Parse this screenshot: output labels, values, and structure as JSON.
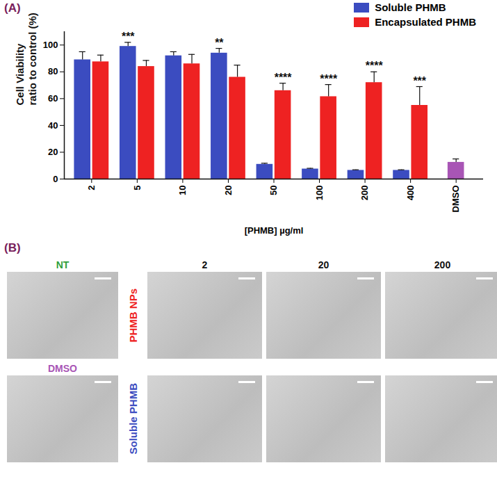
{
  "chart_data": {
    "type": "bar",
    "title": "(A)",
    "y_label": "Cell Viability\nratio to control (%)",
    "x_label": "[PHMB] µg/ml",
    "categories": [
      "2",
      "5",
      "10",
      "20",
      "50",
      "100",
      "200",
      "400",
      "DMSO"
    ],
    "series": [
      {
        "name": "Soluble PHMB",
        "color": "#3b4cc0",
        "values": [
          89,
          99,
          92,
          94,
          11,
          7.5,
          6.5,
          6.5,
          null
        ],
        "errors": [
          6,
          3,
          3,
          3.5,
          0.8,
          0.5,
          0.4,
          0.4,
          null
        ]
      },
      {
        "name": "Encapsulated PHMB",
        "color": "#ee2222",
        "values": [
          87.5,
          84,
          86,
          76,
          66,
          61.5,
          72,
          55,
          null
        ],
        "errors": [
          5,
          4.5,
          7,
          9,
          5.5,
          9,
          8,
          14,
          null
        ]
      }
    ],
    "control": {
      "category": "DMSO",
      "value": 12.5,
      "error": 2.5,
      "color": "#a855b5"
    },
    "annotations": [
      {
        "category": "5",
        "series": "Soluble PHMB",
        "text": "***"
      },
      {
        "category": "20",
        "series": "Soluble PHMB",
        "text": "**"
      },
      {
        "category": "50",
        "series": "Encapsulated PHMB",
        "text": "****"
      },
      {
        "category": "100",
        "series": "Encapsulated PHMB",
        "text": "****"
      },
      {
        "category": "200",
        "series": "Encapsulated PHMB",
        "text": "****"
      },
      {
        "category": "400",
        "series": "Encapsulated PHMB",
        "text": "***"
      }
    ],
    "ylim": [
      0,
      110
    ],
    "yticks": [
      0,
      20,
      40,
      60,
      80,
      100
    ],
    "legend": "top-right",
    "grid": false
  },
  "image_panel": {
    "title": "(B)",
    "columns": [
      "2",
      "20",
      "200"
    ],
    "rows": [
      {
        "label": "PHMB NPs",
        "color": "#ee2222",
        "control": {
          "label": "NT",
          "color": "#2e9e3a"
        }
      },
      {
        "label": "Soluble PHMB",
        "color": "#3b4cc0",
        "control": {
          "label": "DMSO",
          "color": "#a855b5"
        }
      }
    ]
  }
}
